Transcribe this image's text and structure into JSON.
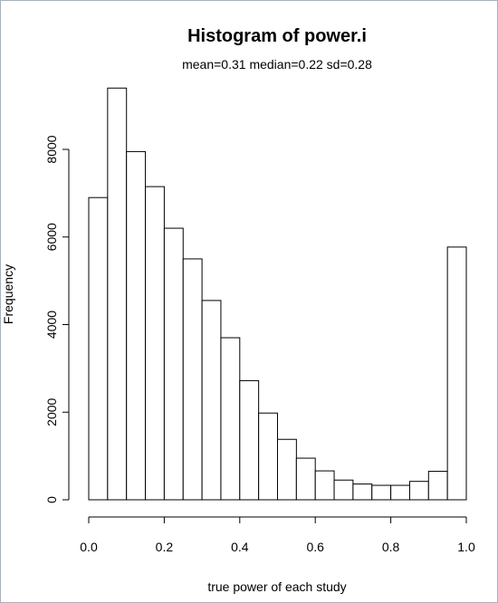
{
  "chart_data": {
    "type": "bar",
    "title": "Histogram of power.i",
    "subtitle": "mean=0.31   median=0.22   sd=0.28",
    "xlabel": "true power of each study",
    "ylabel": "Frequency",
    "xlim": [
      0,
      1
    ],
    "ylim": [
      0,
      9500
    ],
    "bin_width": 0.05,
    "bin_starts": [
      0.0,
      0.05,
      0.1,
      0.15,
      0.2,
      0.25,
      0.3,
      0.35,
      0.4,
      0.45,
      0.5,
      0.55,
      0.6,
      0.65,
      0.7,
      0.75,
      0.8,
      0.85,
      0.9,
      0.95
    ],
    "values": [
      6900,
      9400,
      7950,
      7150,
      6200,
      5500,
      4550,
      3700,
      2720,
      1980,
      1380,
      950,
      660,
      450,
      360,
      330,
      330,
      420,
      650,
      5770
    ],
    "x_ticks": [
      "0.0",
      "0.2",
      "0.4",
      "0.6",
      "0.8",
      "1.0"
    ],
    "x_tick_values": [
      0,
      0.2,
      0.4,
      0.6,
      0.8,
      1.0
    ],
    "y_ticks": [
      "0",
      "2000",
      "4000",
      "6000",
      "8000"
    ],
    "y_tick_values": [
      0,
      2000,
      4000,
      6000,
      8000
    ],
    "grid": false
  }
}
